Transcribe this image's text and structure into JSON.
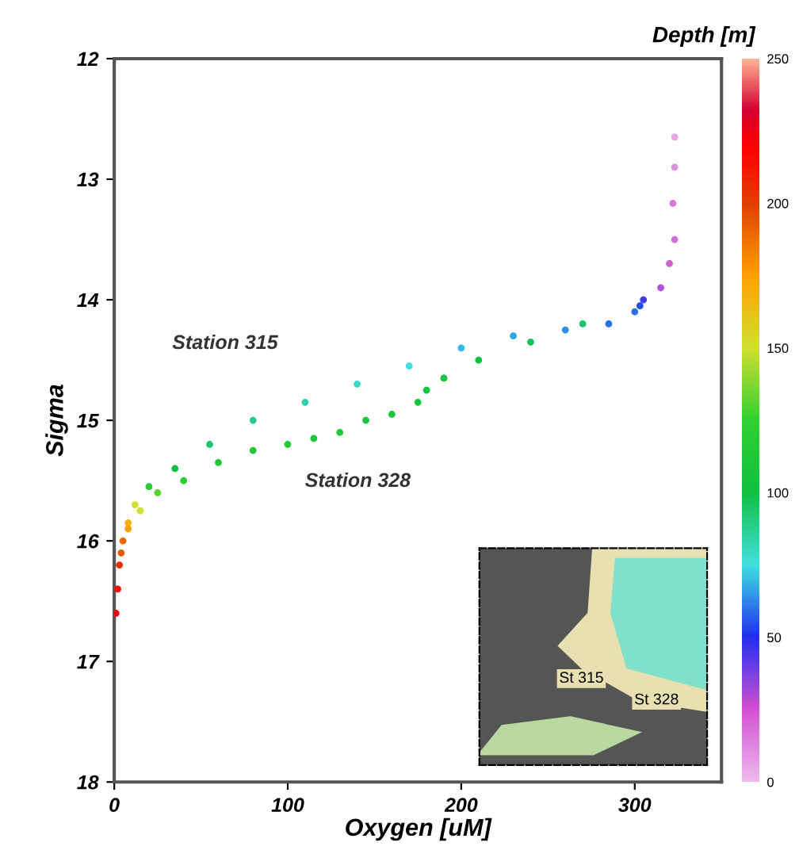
{
  "chart_data": {
    "type": "scatter",
    "xlabel": "Oxygen [uM]",
    "ylabel": "Sigma",
    "clabel": "Depth [m]",
    "xlim": [
      0,
      350
    ],
    "ylim": [
      18,
      12
    ],
    "xticks": [
      0,
      100,
      200,
      300
    ],
    "yticks": [
      12,
      13,
      14,
      15,
      16,
      17,
      18
    ],
    "clim": [
      0,
      250
    ],
    "cticks": [
      0,
      50,
      100,
      150,
      200,
      250
    ],
    "grid": false,
    "marker": "circle",
    "series": [
      {
        "name": "Station 315",
        "x": [
          323,
          323,
          322,
          323,
          320,
          315,
          305,
          303,
          285,
          260,
          230,
          200,
          170,
          140,
          110,
          80,
          55,
          35,
          20,
          12,
          8,
          5,
          3,
          2,
          1
        ],
        "values": [
          12.65,
          12.9,
          13.2,
          13.5,
          13.7,
          13.9,
          14.0,
          14.05,
          14.2,
          14.25,
          14.3,
          14.4,
          14.55,
          14.7,
          14.85,
          15.0,
          15.2,
          15.4,
          15.55,
          15.7,
          15.85,
          16.0,
          16.2,
          16.4,
          16.6
        ],
        "colors": [
          "#e8a0e8",
          "#e090e0",
          "#d878d8",
          "#d070d8",
          "#d060d0",
          "#b050d8",
          "#4038e8",
          "#2050f0",
          "#2870f0",
          "#3090e8",
          "#30a8e8",
          "#38b8e8",
          "#40e0e0",
          "#38d8c8",
          "#30d0b0",
          "#28c890",
          "#20c470",
          "#10c040",
          "#28cc38",
          "#d0e030",
          "#f8b010",
          "#f06800",
          "#e83000",
          "#f81000",
          "#f00010"
        ]
      },
      {
        "name": "Station 328",
        "x": [
          300,
          270,
          240,
          210,
          190,
          180,
          175,
          160,
          145,
          130,
          115,
          100,
          80,
          60,
          40,
          25,
          15,
          8,
          4
        ],
        "values": [
          14.1,
          14.2,
          14.35,
          14.5,
          14.65,
          14.75,
          14.85,
          14.95,
          15.0,
          15.1,
          15.15,
          15.2,
          15.25,
          15.35,
          15.5,
          15.6,
          15.75,
          15.9,
          16.1
        ],
        "colors": [
          "#2870f0",
          "#20c470",
          "#18c258",
          "#10c040",
          "#18c440",
          "#18c440",
          "#1cc63c",
          "#1cc63c",
          "#1cc63c",
          "#20c83a",
          "#20c83a",
          "#20c83a",
          "#20c83a",
          "#20c83a",
          "#28cc38",
          "#58d430",
          "#d0e030",
          "#ffa000",
          "#e85800"
        ]
      }
    ],
    "annotations": [
      "St 315",
      "St 328"
    ]
  }
}
